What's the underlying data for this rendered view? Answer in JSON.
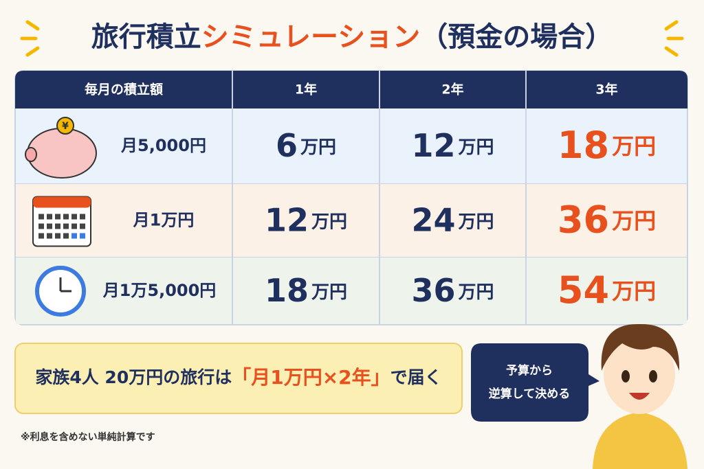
{
  "title": {
    "part1": "旅行積立",
    "part2": "シミュレーション",
    "part3": "（預金の場合）"
  },
  "table": {
    "header": [
      "毎月の積立額",
      "1年",
      "2年",
      "3年"
    ],
    "rows": [
      {
        "label": "月5,000円",
        "icon_text": "¥",
        "cells": [
          {
            "amount": 6,
            "unit": "万円"
          },
          {
            "amount": 12,
            "unit": "万円"
          },
          {
            "amount": 18,
            "unit": "万円"
          }
        ]
      },
      {
        "label": "月1万円",
        "cells": [
          {
            "amount": 12,
            "unit": "万円"
          },
          {
            "amount": 24,
            "unit": "万円"
          },
          {
            "amount": 36,
            "unit": "万円"
          }
        ]
      },
      {
        "label": "月1万5,000円",
        "cells": [
          {
            "amount": 18,
            "unit": "万円"
          },
          {
            "amount": 36,
            "unit": "万円"
          },
          {
            "amount": 54,
            "unit": "万円"
          }
        ]
      }
    ]
  },
  "callout": {
    "part1": "家族4人 20万円の旅行は",
    "part2": "「月1万円×2年」",
    "part3": "で届く"
  },
  "bubble": {
    "line1": "予算から",
    "line2": "逆算して決める"
  },
  "footnote": "※利息を含めない単純計算です"
}
